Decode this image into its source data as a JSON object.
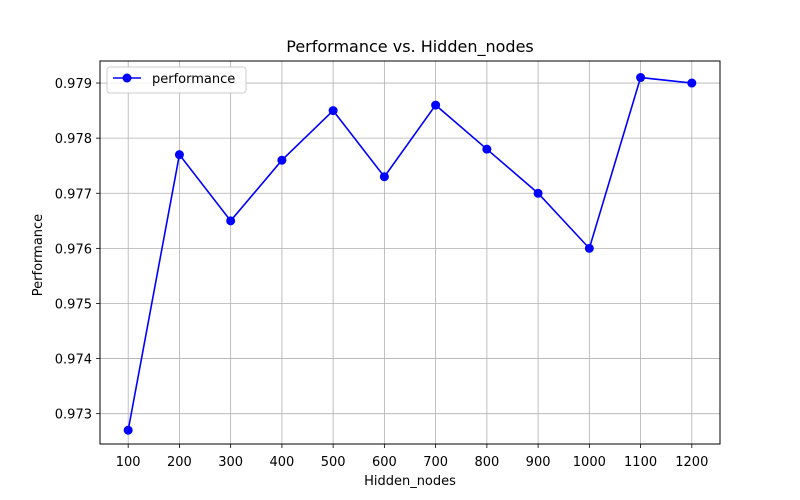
{
  "chart_data": {
    "type": "line",
    "title": "Performance vs. Hidden_nodes",
    "xlabel": "Hidden_nodes",
    "ylabel": "Performance",
    "x": [
      100,
      200,
      300,
      400,
      500,
      600,
      700,
      800,
      900,
      1000,
      1100,
      1200
    ],
    "xticks": [
      "100",
      "200",
      "300",
      "400",
      "500",
      "600",
      "700",
      "800",
      "900",
      "1000",
      "1100",
      "1200"
    ],
    "yticks": [
      "0.973",
      "0.974",
      "0.975",
      "0.976",
      "0.977",
      "0.978",
      "0.979"
    ],
    "xlim": [
      45,
      1255
    ],
    "ylim": [
      0.97245,
      0.9794
    ],
    "grid": true,
    "legend_position": "top-left",
    "series": [
      {
        "name": "performance",
        "color": "#0000ff",
        "marker": "circle",
        "values": [
          0.9727,
          0.9777,
          0.9765,
          0.9776,
          0.9785,
          0.9773,
          0.9786,
          0.9778,
          0.977,
          0.976,
          0.9791,
          0.979
        ]
      }
    ]
  }
}
